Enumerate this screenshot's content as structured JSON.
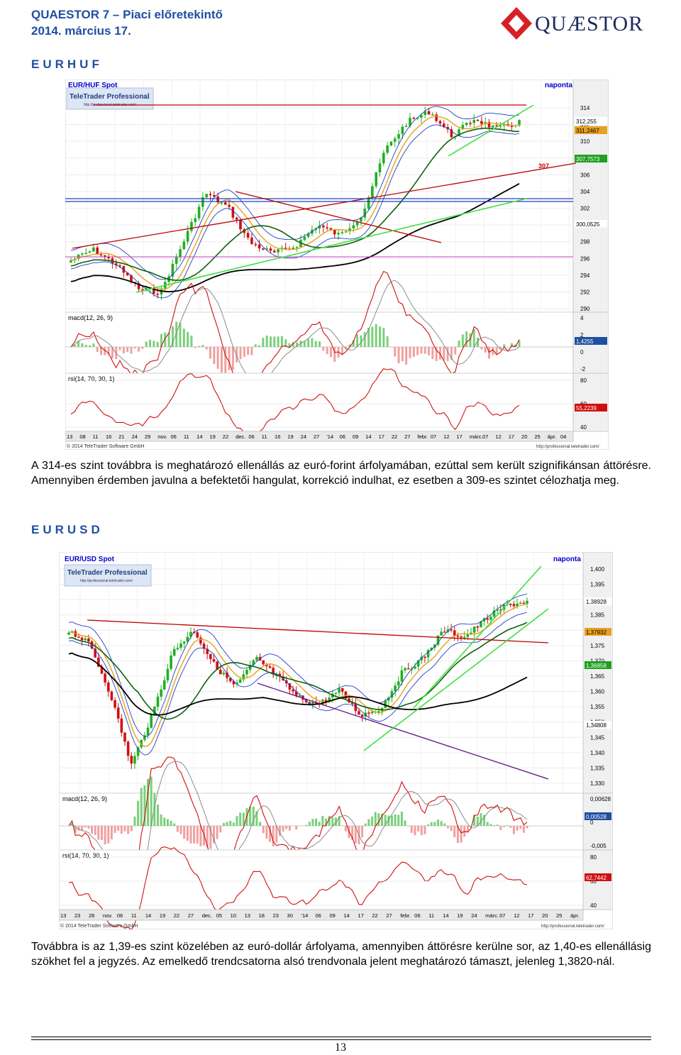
{
  "header": {
    "title": "QUAESTOR 7 – Piaci előretekintő",
    "date": "2014. március 17.",
    "logo_text": "QUÆSTOR"
  },
  "sections": [
    {
      "heading": "EURHUF",
      "paragraph": "A 314-es szint továbbra is meghatározó ellenállás az euró-forint árfolyamában, ezúttal sem került szignifikánsan áttörésre. Amennyiben érdemben javulna a befektetői hangulat, korrekció indulhat, ez esetben a 309-es szintet célozhatja meg.",
      "chart": {
        "instrument": "EUR/HUF Spot",
        "provider": "TeleTrader Professional",
        "provider_url": "http://professional.teletrader.com/",
        "interval": "naponta",
        "price_ticks": [
          "314",
          "312",
          "310",
          "308",
          "306",
          "304",
          "302",
          "300",
          "298",
          "296",
          "294",
          "292",
          "290"
        ],
        "price_labels": [
          "312,255",
          "311,2467",
          "307,7573",
          "300,0525"
        ],
        "level_label": "307",
        "macd_title": "macd(12, 26, 9)",
        "macd_ticks": [
          "4",
          "2",
          "0",
          "-2"
        ],
        "macd_value": "1,4255",
        "rsi_title": "rsi(14, 70, 30, 1)",
        "rsi_ticks": [
          "80",
          "60",
          "40"
        ],
        "rsi_value": "55,2239",
        "date_labels": [
          "13",
          "08",
          "11",
          "16",
          "21",
          "24",
          "29",
          "nov.",
          "06",
          "11",
          "14",
          "19",
          "22",
          "dec.",
          "06",
          "11",
          "16",
          "19",
          "24",
          "27",
          "'14",
          "06",
          "09",
          "14",
          "17",
          "22",
          "27",
          "febr.",
          "07",
          "12",
          "17",
          "márc.",
          "07",
          "12",
          "17",
          "20",
          "25",
          "ápr.",
          "04"
        ],
        "copyright": "© 2014 TeleTrader Software GmbH",
        "footer_url": "http://professional.teletrader.com/"
      }
    },
    {
      "heading": "EURUSD",
      "paragraph": "Továbbra is az 1,39-es szint közelében az euró-dollár árfolyama, amennyiben áttörésre kerülne sor, az 1,40-es ellenállásig szökhet fel a jegyzés. Az emelkedő trendcsatorna alsó trendvonala jelent meghatározó támaszt, jelenleg 1,3820-nál.",
      "chart": {
        "instrument": "EUR/USD Spot",
        "provider": "TeleTrader Professional",
        "provider_url": "http://professional.teletrader.com/",
        "interval": "naponta",
        "price_ticks": [
          "1,400",
          "1,395",
          "1,390",
          "1,385",
          "1,380",
          "1,375",
          "1,370",
          "1,365",
          "1,360",
          "1,355",
          "1,350",
          "1,345",
          "1,340",
          "1,335",
          "1,330"
        ],
        "price_labels": [
          "1,38928",
          "1,37932",
          "1,36858",
          "1,34808"
        ],
        "macd_title": "macd(12, 26, 9)",
        "macd_ticks": [
          "0,00628",
          "0",
          "-0,005"
        ],
        "macd_value": "0,00528",
        "rsi_title": "rsi(14, 70, 30, 1)",
        "rsi_ticks": [
          "80",
          "60",
          "40"
        ],
        "rsi_value": "62,7442",
        "date_labels": [
          "13",
          "23",
          "28",
          "nov.",
          "06",
          "11",
          "14",
          "19",
          "22",
          "27",
          "dec.",
          "05",
          "10",
          "13",
          "18",
          "23",
          "30",
          "'14",
          "06",
          "09",
          "14",
          "17",
          "22",
          "27",
          "febr.",
          "06",
          "11",
          "14",
          "19",
          "24",
          "márc.",
          "07",
          "12",
          "17",
          "20",
          "25",
          "ápr."
        ],
        "copyright": "© 2014 TeleTrader Software GmbH",
        "footer_url": "http://professional.teletrader.com/"
      }
    }
  ],
  "page_number": "13",
  "colors": {
    "heading_blue": "#1f4fa0",
    "chart_title_blue": "#0000cc",
    "candle_up": "#20b020",
    "candle_down": "#d01010",
    "trend_green": "#40e040",
    "ma_orange": "#e8a020",
    "ma_darkgreen": "#106010",
    "ma_black": "#000000",
    "band_blue": "#2040c0",
    "resistance_red": "#c00000",
    "trend_purple": "#6a1a8a"
  }
}
